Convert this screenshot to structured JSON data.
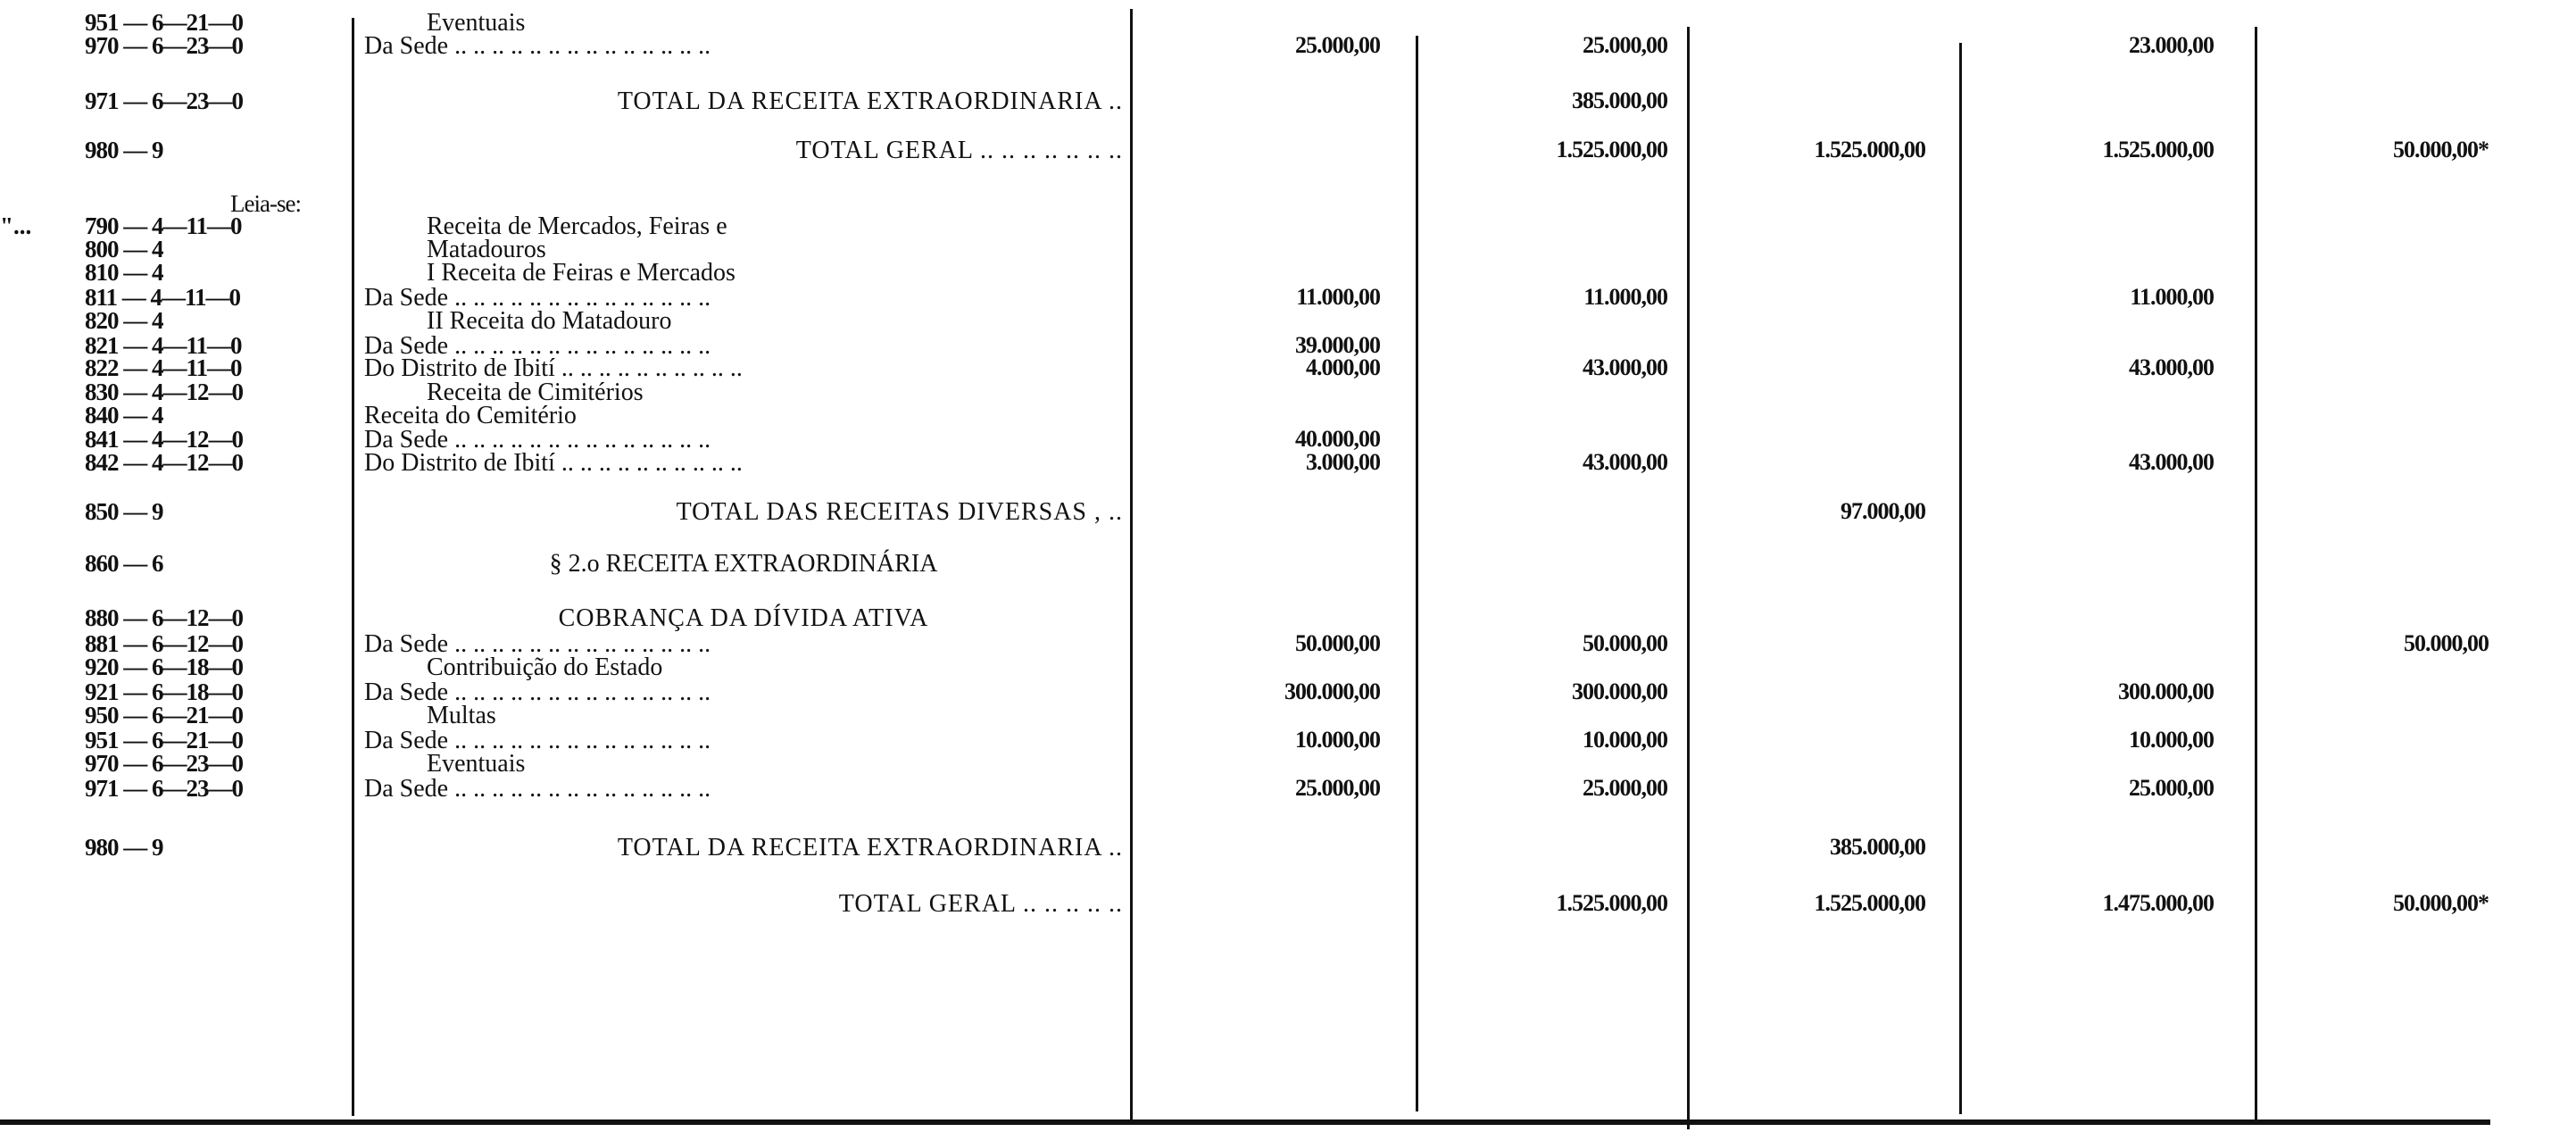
{
  "rows": [
    {
      "code": "951 — 6—21—0",
      "text": "Eventuais",
      "style": "indent",
      "values": [
        "",
        "",
        "",
        "",
        ""
      ]
    },
    {
      "code": "970 — 6—23—0",
      "text": "Da Sede .. .. .. .. .. .. .. .. .. .. .. .. .. ..",
      "style": "flush",
      "values": [
        "25.000,00",
        "25.000,00",
        "",
        "23.000,00",
        ""
      ]
    },
    {
      "code": "971 — 6—23—0",
      "text": "TOTAL DA RECEITA EXTRAORDINARIA ..",
      "style": "right heading",
      "values": [
        "",
        "385.000,00",
        "",
        "",
        ""
      ]
    },
    {
      "code": "980 — 9",
      "text": "TOTAL GERAL .. .. .. .. .. .. ..",
      "style": "right heading",
      "values": [
        "",
        "1.525.000,00",
        "1.525.000,00",
        "1.525.000,00",
        "50.000,00*"
      ]
    },
    {
      "code": "Leia-se:",
      "text": "",
      "style": "note",
      "values": [
        "",
        "",
        "",
        "",
        ""
      ]
    },
    {
      "mark": "\"...",
      "code": "790 — 4—11—0",
      "text": "Receita de Mercados, Feiras e",
      "style": "indent",
      "values": [
        "",
        "",
        "",
        "",
        ""
      ]
    },
    {
      "code": "800 — 4",
      "text": "Matadouros",
      "style": "indent",
      "values": [
        "",
        "",
        "",
        "",
        ""
      ]
    },
    {
      "code": "810 — 4",
      "text": "I Receita de Feiras e Mercados",
      "style": "indent",
      "values": [
        "",
        "",
        "",
        "",
        ""
      ]
    },
    {
      "code": "811 — 4—11—0",
      "text": "Da Sede .. .. .. .. .. .. .. .. .. .. .. .. .. ..",
      "style": "flush",
      "values": [
        "11.000,00",
        "11.000,00",
        "",
        "11.000,00",
        ""
      ]
    },
    {
      "code": "820 — 4",
      "text": "II Receita do Matadouro",
      "style": "indent",
      "values": [
        "",
        "",
        "",
        "",
        ""
      ]
    },
    {
      "code": "821 — 4—11—0",
      "text": "Da Sede .. .. .. .. .. .. .. .. .. .. .. .. .. ..",
      "style": "flush",
      "values": [
        "39.000,00",
        "",
        "",
        "",
        ""
      ]
    },
    {
      "code": "822 — 4—11—0",
      "text": "Do Distrito de Ibití .. .. .. .. .. .. .. .. .. ..",
      "style": "flush",
      "values": [
        "4.000,00",
        "43.000,00",
        "",
        "43.000,00",
        ""
      ]
    },
    {
      "code": "830 — 4—12—0",
      "text": "Receita de Cimitérios",
      "style": "indent",
      "values": [
        "",
        "",
        "",
        "",
        ""
      ]
    },
    {
      "code": "840 — 4",
      "text": "Receita do Cemitério",
      "style": "flush",
      "values": [
        "",
        "",
        "",
        "",
        ""
      ]
    },
    {
      "code": "841 — 4—12—0",
      "text": "Da Sede .. .. .. .. .. .. .. .. .. .. .. .. .. ..",
      "style": "flush",
      "values": [
        "40.000,00",
        "",
        "",
        "",
        ""
      ]
    },
    {
      "code": "842 — 4—12—0",
      "text": "Do Distrito de Ibití .. .. .. .. .. .. .. .. .. ..",
      "style": "flush",
      "values": [
        "3.000,00",
        "43.000,00",
        "",
        "43.000,00",
        ""
      ]
    },
    {
      "code": "850 — 9",
      "text": "TOTAL DAS RECEITAS DIVERSAS , ..",
      "style": "right heading",
      "values": [
        "",
        "",
        "97.000,00",
        "",
        ""
      ]
    },
    {
      "code": "860 — 6",
      "text": "§ 2.o RECEITA EXTRAORDINÁRIA",
      "style": "center",
      "values": [
        "",
        "",
        "",
        "",
        ""
      ]
    },
    {
      "code": "880 — 6—12—0",
      "text": "COBRANÇA DA DÍVIDA ATIVA",
      "style": "center heading",
      "values": [
        "",
        "",
        "",
        "",
        ""
      ]
    },
    {
      "code": "881 — 6—12—0",
      "text": "Da Sede .. .. .. .. .. .. .. .. .. .. .. .. .. ..",
      "style": "flush",
      "values": [
        "50.000,00",
        "50.000,00",
        "",
        "",
        "50.000,00"
      ]
    },
    {
      "code": "920 — 6—18—0",
      "text": "Contribuição do Estado",
      "style": "indent",
      "values": [
        "",
        "",
        "",
        "",
        ""
      ]
    },
    {
      "code": "921 — 6—18—0",
      "text": "Da Sede .. .. .. .. .. .. .. .. .. .. .. .. .. ..",
      "style": "flush",
      "values": [
        "300.000,00",
        "300.000,00",
        "",
        "300.000,00",
        ""
      ]
    },
    {
      "code": "950 — 6—21—0",
      "text": "Multas",
      "style": "indent",
      "values": [
        "",
        "",
        "",
        "",
        ""
      ]
    },
    {
      "code": "951 — 6—21—0",
      "text": "Da Sede .. .. .. .. .. .. .. .. .. .. .. .. .. ..",
      "style": "flush",
      "values": [
        "10.000,00",
        "10.000,00",
        "",
        "10.000,00",
        ""
      ]
    },
    {
      "code": "970 — 6—23—0",
      "text": "Eventuais",
      "style": "indent",
      "values": [
        "",
        "",
        "",
        "",
        ""
      ]
    },
    {
      "code": "971 — 6—23—0",
      "text": "Da Sede .. .. .. .. .. .. .. .. .. .. .. .. .. ..",
      "style": "flush",
      "values": [
        "25.000,00",
        "25.000,00",
        "",
        "25.000,00",
        ""
      ]
    },
    {
      "code": "980 — 9",
      "text": "TOTAL DA RECEITA EXTRAORDINARIA ..",
      "style": "right heading",
      "values": [
        "",
        "",
        "385.000,00",
        "",
        ""
      ]
    },
    {
      "code": "",
      "text": "TOTAL GERAL .. .. .. .. ..",
      "style": "right heading",
      "values": [
        "",
        "1.525.000,00",
        "1.525.000,00",
        "1.475.000,00",
        "50.000,00*"
      ]
    }
  ]
}
